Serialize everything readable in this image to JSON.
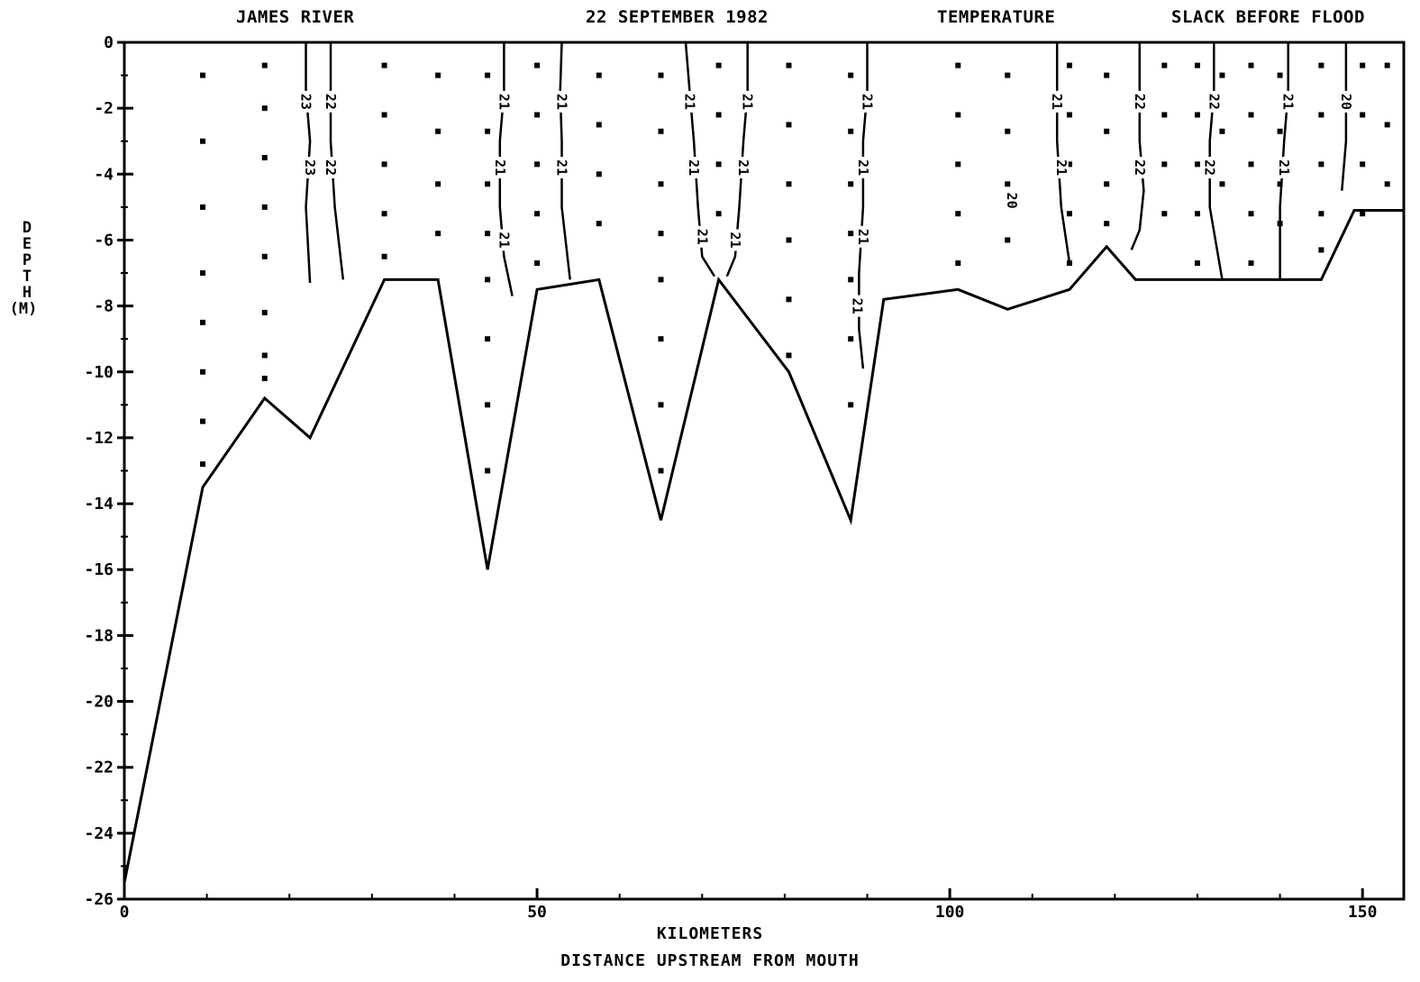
{
  "header": {
    "left": "JAMES RIVER",
    "date": "22 SEPTEMBER 1982",
    "variable": "TEMPERATURE",
    "phase": "SLACK BEFORE FLOOD"
  },
  "chart_data": {
    "type": "line",
    "xlabel": "KILOMETERS",
    "xlabel2": "DISTANCE UPSTREAM FROM MOUTH",
    "ylabel_letters": [
      "D",
      "E",
      "P",
      "T",
      "H"
    ],
    "ylabel_unit": "(M)",
    "xlim": [
      0,
      155
    ],
    "ylim": [
      -26,
      0
    ],
    "x_ticks": [
      0,
      50,
      100,
      150
    ],
    "x_tick_labels": [
      "0",
      "50",
      "100",
      "150"
    ],
    "y_ticks": [
      0,
      -2,
      -4,
      -6,
      -8,
      -10,
      -12,
      -14,
      -16,
      -18,
      -20,
      -22,
      -24,
      -26
    ],
    "y_tick_labels": [
      "0",
      "-2",
      "-4",
      "-6",
      "-8",
      "-10",
      "-12",
      "-14",
      "-16",
      "-18",
      "-20",
      "-22",
      "-24",
      "-26"
    ],
    "bottom_profile": {
      "x": [
        0,
        9.5,
        17,
        22.5,
        31.5,
        38,
        44,
        50,
        57.5,
        65,
        72,
        80.5,
        88,
        92,
        101,
        107,
        114.5,
        119,
        122.5,
        132,
        140,
        145,
        149,
        155
      ],
      "y": [
        -25.5,
        -13.5,
        -10.8,
        -12,
        -7.2,
        -7.2,
        -16,
        -7.5,
        -7.2,
        -14.5,
        -7.2,
        -10,
        -14.5,
        -7.8,
        -7.5,
        -8.1,
        -7.5,
        -6.2,
        -7.2,
        -7.2,
        -7.2,
        -7.2,
        -5.1,
        -5.1
      ]
    },
    "sample_stations": [
      {
        "x": 9.5,
        "depths": [
          -1,
          -3,
          -5,
          -7,
          -8.5,
          -10,
          -11.5,
          -12.8
        ]
      },
      {
        "x": 17,
        "depths": [
          -0.7,
          -2,
          -3.5,
          -5,
          -6.5,
          -8.2,
          -9.5,
          -10.2
        ]
      },
      {
        "x": 31.5,
        "depths": [
          -0.7,
          -2.2,
          -3.7,
          -5.2,
          -6.5
        ]
      },
      {
        "x": 38,
        "depths": [
          -1,
          -2.7,
          -4.3,
          -5.8
        ]
      },
      {
        "x": 44,
        "depths": [
          -1,
          -2.7,
          -4.3,
          -5.8,
          -7.2,
          -9,
          -11,
          -13
        ]
      },
      {
        "x": 50,
        "depths": [
          -0.7,
          -2.2,
          -3.7,
          -5.2,
          -6.7
        ]
      },
      {
        "x": 57.5,
        "depths": [
          -1,
          -2.5,
          -4,
          -5.5
        ]
      },
      {
        "x": 65,
        "depths": [
          -1,
          -2.7,
          -4.3,
          -5.8,
          -7.2,
          -9,
          -11,
          -13
        ]
      },
      {
        "x": 72,
        "depths": [
          -0.7,
          -2.2,
          -3.7,
          -5.2
        ]
      },
      {
        "x": 80.5,
        "depths": [
          -0.7,
          -2.5,
          -4.3,
          -6,
          -7.8,
          -9.5
        ]
      },
      {
        "x": 88,
        "depths": [
          -1,
          -2.7,
          -4.3,
          -5.8,
          -7.2,
          -9,
          -11
        ]
      },
      {
        "x": 101,
        "depths": [
          -0.7,
          -2.2,
          -3.7,
          -5.2,
          -6.7
        ]
      },
      {
        "x": 107,
        "depths": [
          -1,
          -2.7,
          -4.3,
          -6
        ]
      },
      {
        "x": 114.5,
        "depths": [
          -0.7,
          -2.2,
          -3.7,
          -5.2,
          -6.7
        ]
      },
      {
        "x": 119,
        "depths": [
          -1,
          -2.7,
          -4.3,
          -5.5
        ]
      },
      {
        "x": 126,
        "depths": [
          -0.7,
          -2.2,
          -3.7,
          -5.2
        ]
      },
      {
        "x": 130,
        "depths": [
          -0.7,
          -2.2,
          -3.7,
          -5.2,
          -6.7
        ]
      },
      {
        "x": 133,
        "depths": [
          -1,
          -2.7,
          -4.3
        ]
      },
      {
        "x": 136.5,
        "depths": [
          -0.7,
          -2.2,
          -3.7,
          -5.2,
          -6.7
        ]
      },
      {
        "x": 140,
        "depths": [
          -1,
          -2.7,
          -4.3,
          -5.5
        ]
      },
      {
        "x": 145,
        "depths": [
          -0.7,
          -2.2,
          -3.7,
          -5.2,
          -6.3
        ]
      },
      {
        "x": 150,
        "depths": [
          -0.7,
          -2.2,
          -3.7,
          -5.2
        ]
      },
      {
        "x": 153,
        "depths": [
          -0.7,
          -2.5,
          -4.3
        ]
      }
    ],
    "contours": [
      {
        "label": "23",
        "points": [
          [
            22,
            0
          ],
          [
            22,
            -1.5
          ],
          [
            22.5,
            -3
          ],
          [
            22,
            -5
          ],
          [
            22.5,
            -7.3
          ]
        ]
      },
      {
        "label": "22",
        "points": [
          [
            25,
            0
          ],
          [
            25,
            -1.5
          ],
          [
            25,
            -3
          ],
          [
            25.5,
            -5
          ],
          [
            26.5,
            -7.2
          ]
        ]
      },
      {
        "label": "21",
        "points": [
          [
            46,
            0
          ],
          [
            46,
            -1.5
          ],
          [
            45.5,
            -3
          ],
          [
            45.5,
            -5
          ],
          [
            46,
            -6.5
          ],
          [
            47,
            -7.7
          ]
        ]
      },
      {
        "label": "21",
        "points": [
          [
            53,
            0
          ],
          [
            52.8,
            -1.5
          ],
          [
            53,
            -3
          ],
          [
            53,
            -5
          ],
          [
            54,
            -7.2
          ]
        ]
      },
      {
        "label": "21",
        "points": [
          [
            68,
            0
          ],
          [
            68.5,
            -1.5
          ],
          [
            69,
            -3
          ],
          [
            69.5,
            -5
          ],
          [
            70,
            -6.5
          ],
          [
            71.5,
            -7.1
          ]
        ]
      },
      {
        "label": "21",
        "points": [
          [
            75.5,
            0
          ],
          [
            75.5,
            -1.5
          ],
          [
            75,
            -3
          ],
          [
            74.5,
            -5
          ],
          [
            74,
            -6.5
          ],
          [
            73,
            -7.1
          ]
        ]
      },
      {
        "label": "21",
        "points": [
          [
            90,
            0
          ],
          [
            90,
            -1.5
          ],
          [
            89.5,
            -3
          ],
          [
            89.5,
            -5
          ],
          [
            89,
            -7
          ],
          [
            89,
            -8.7
          ],
          [
            89.5,
            -9.9
          ]
        ]
      },
      {
        "label": "21",
        "points": [
          [
            113,
            0
          ],
          [
            113,
            -1.5
          ],
          [
            113,
            -3
          ],
          [
            113.5,
            -5
          ],
          [
            114.5,
            -6.7
          ]
        ]
      },
      {
        "label": "22",
        "points": [
          [
            123,
            0
          ],
          [
            123,
            -1.5
          ],
          [
            123,
            -3
          ],
          [
            123.5,
            -4.5
          ],
          [
            123,
            -5.7
          ],
          [
            122,
            -6.3
          ]
        ]
      },
      {
        "label": "22",
        "points": [
          [
            132,
            0
          ],
          [
            132,
            -1.5
          ],
          [
            131.5,
            -3
          ],
          [
            131.5,
            -5
          ],
          [
            133,
            -7.2
          ]
        ]
      },
      {
        "label": "21",
        "points": [
          [
            141,
            0
          ],
          [
            141,
            -1.5
          ],
          [
            140.5,
            -3
          ],
          [
            140,
            -5
          ],
          [
            140,
            -7.2
          ]
        ]
      },
      {
        "label": "20",
        "points": [
          [
            148,
            0
          ],
          [
            148,
            -1.5
          ],
          [
            148,
            -3
          ],
          [
            147.5,
            -4.5
          ]
        ]
      }
    ],
    "contour_labels": [
      {
        "text": "23",
        "x": 22,
        "y": -1.8
      },
      {
        "text": "23",
        "x": 22.5,
        "y": -3.8
      },
      {
        "text": "22",
        "x": 25,
        "y": -1.8
      },
      {
        "text": "22",
        "x": 25,
        "y": -3.8
      },
      {
        "text": "21",
        "x": 46,
        "y": -1.8
      },
      {
        "text": "21",
        "x": 45.5,
        "y": -3.8
      },
      {
        "text": "21",
        "x": 46,
        "y": -6
      },
      {
        "text": "21",
        "x": 53,
        "y": -1.8
      },
      {
        "text": "21",
        "x": 53,
        "y": -3.8
      },
      {
        "text": "21",
        "x": 68.5,
        "y": -1.8
      },
      {
        "text": "21",
        "x": 69,
        "y": -3.8
      },
      {
        "text": "21",
        "x": 70,
        "y": -5.9
      },
      {
        "text": "21",
        "x": 75.5,
        "y": -1.8
      },
      {
        "text": "21",
        "x": 75,
        "y": -3.8
      },
      {
        "text": "21",
        "x": 74,
        "y": -6
      },
      {
        "text": "21",
        "x": 90,
        "y": -1.8
      },
      {
        "text": "21",
        "x": 89.5,
        "y": -3.8
      },
      {
        "text": "21",
        "x": 89.5,
        "y": -5.9
      },
      {
        "text": "21",
        "x": 88.8,
        "y": -8
      },
      {
        "text": "20",
        "x": 107.5,
        "y": -4.8
      },
      {
        "text": "21",
        "x": 113,
        "y": -1.8
      },
      {
        "text": "21",
        "x": 113.5,
        "y": -3.8
      },
      {
        "text": "22",
        "x": 123,
        "y": -1.8
      },
      {
        "text": "22",
        "x": 123,
        "y": -3.8
      },
      {
        "text": "22",
        "x": 132,
        "y": -1.8
      },
      {
        "text": "22",
        "x": 131.5,
        "y": -3.8
      },
      {
        "text": "21",
        "x": 141,
        "y": -1.8
      },
      {
        "text": "21",
        "x": 140.5,
        "y": -3.8
      },
      {
        "text": "20",
        "x": 148,
        "y": -1.8
      }
    ],
    "grid": false
  }
}
